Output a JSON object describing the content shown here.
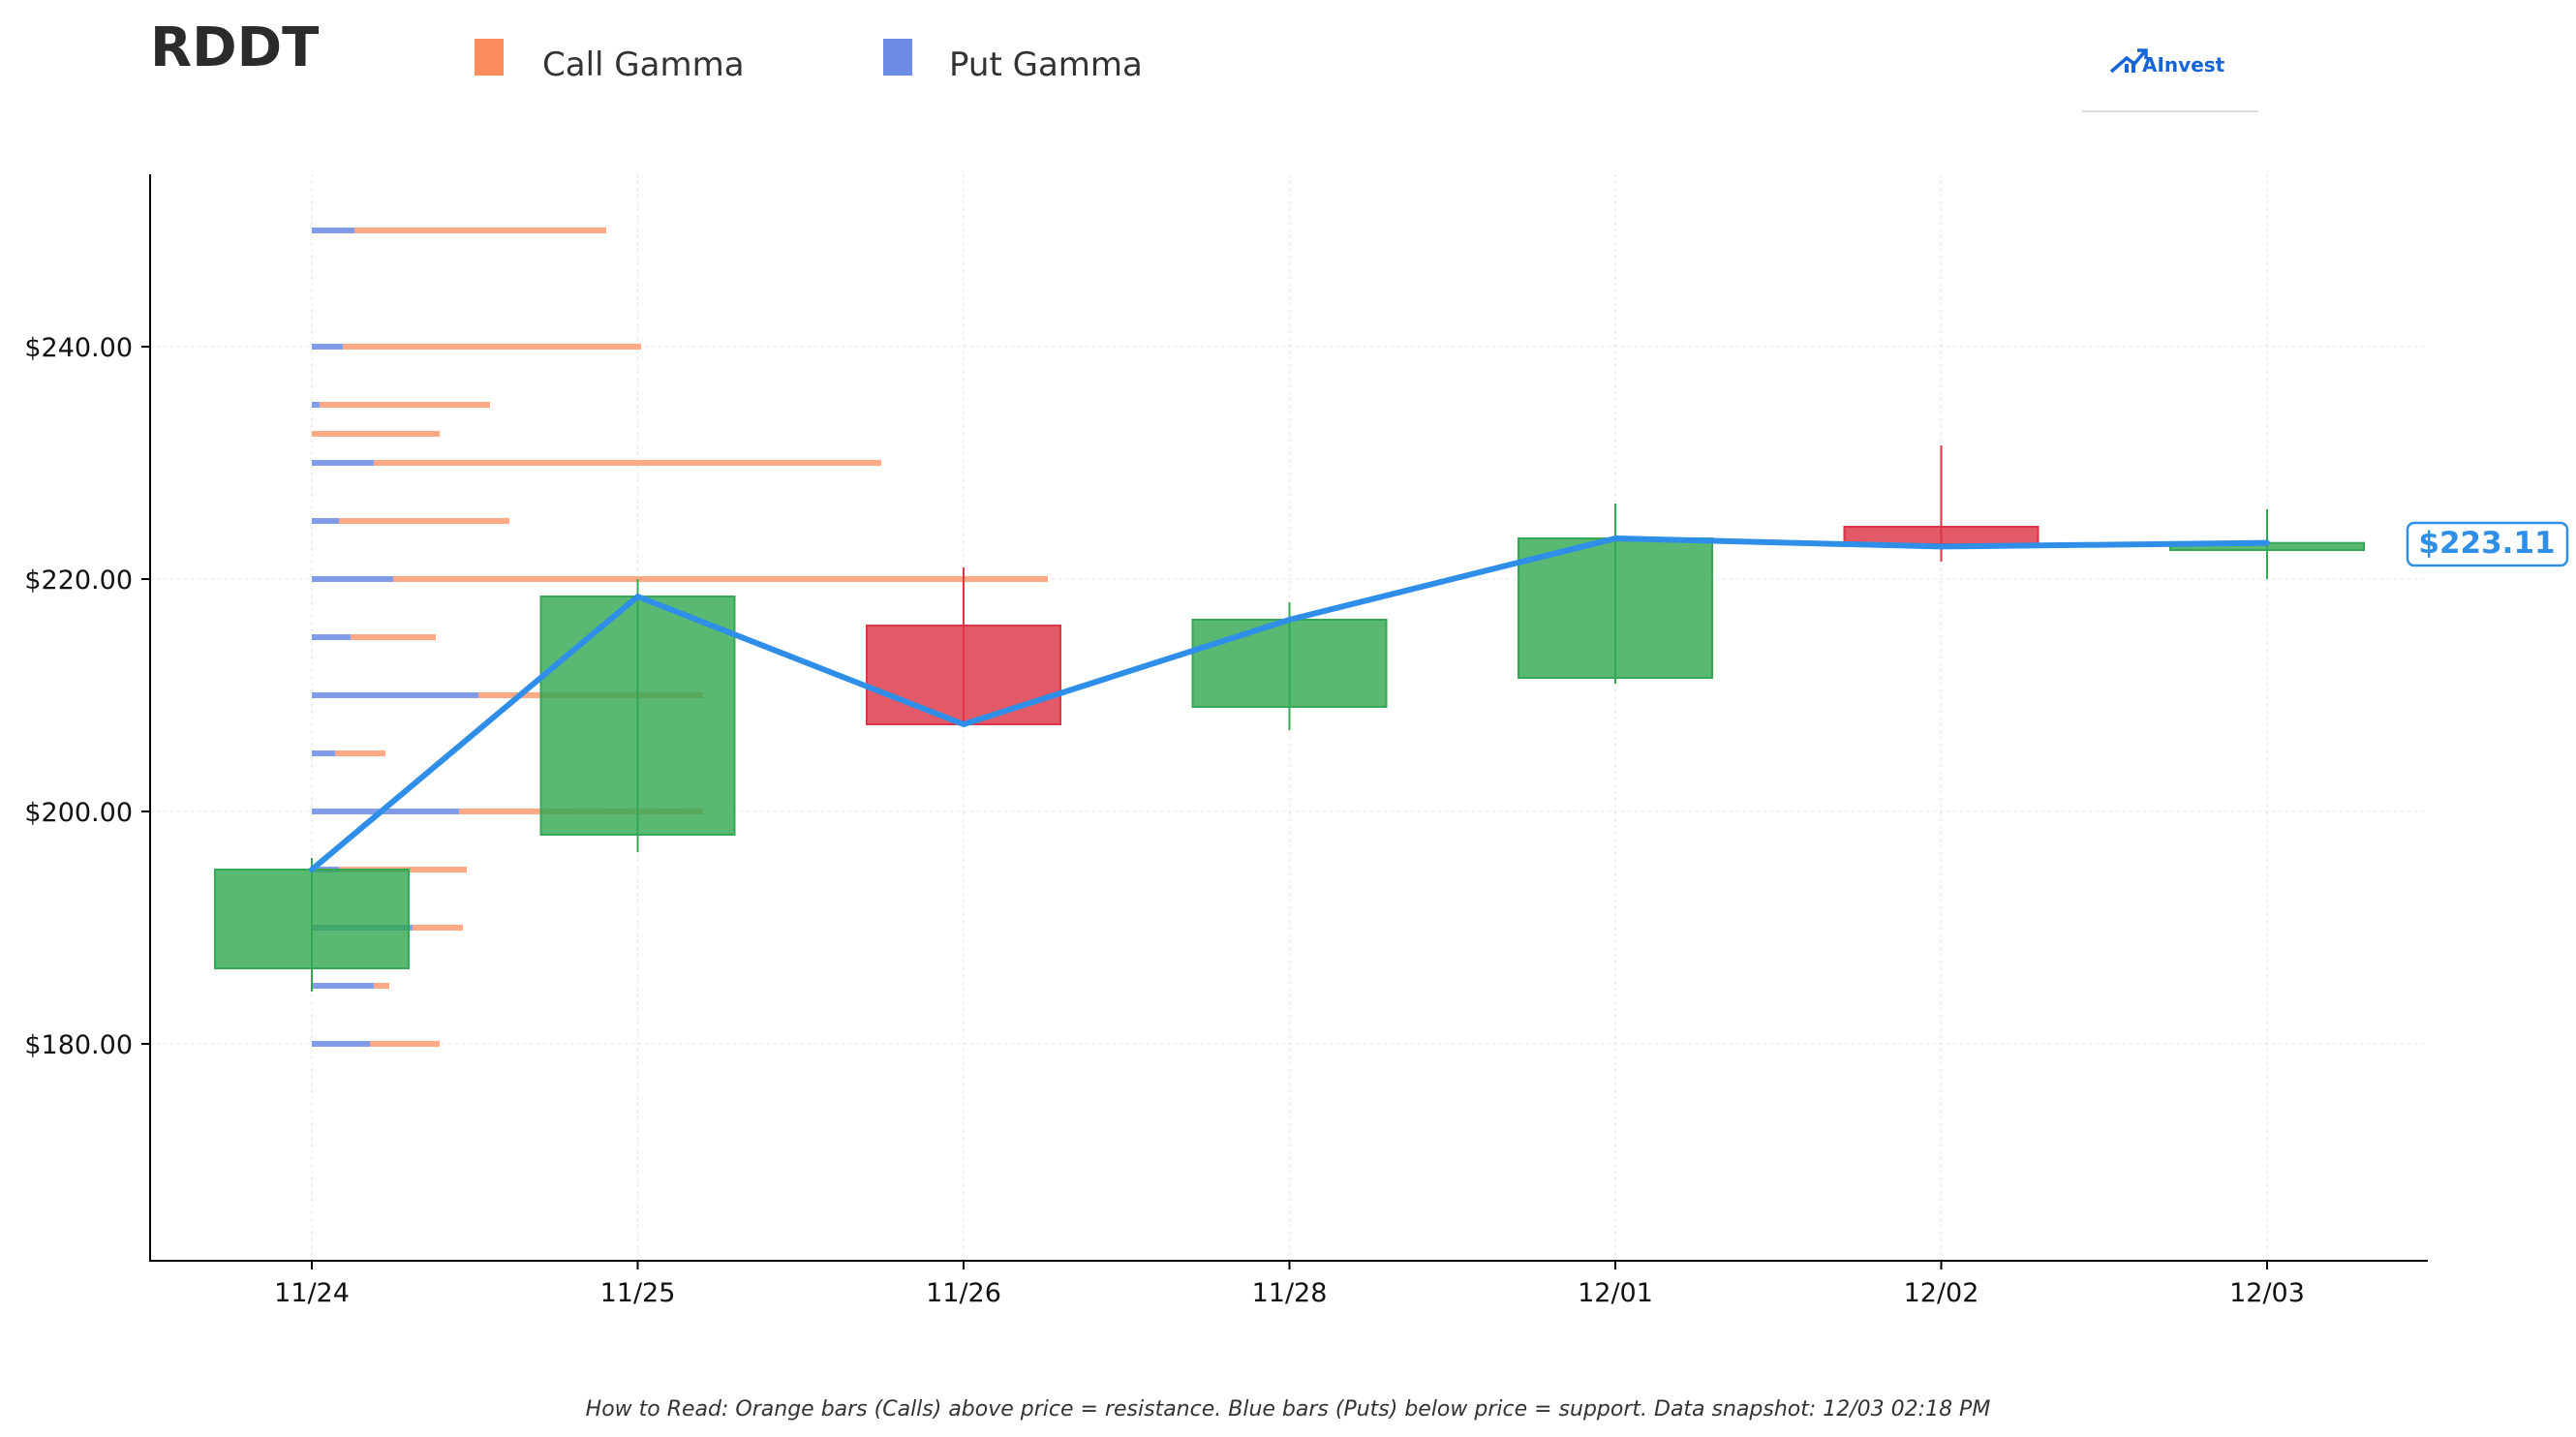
{
  "ticker": "RDDT",
  "legend": {
    "call_label": "Call Gamma",
    "put_label": "Put Gamma",
    "call_color": "#ff8c5c",
    "put_color": "#6b8be6"
  },
  "logo": {
    "text": "AInvest",
    "icon": "chart-arrow-icon"
  },
  "footnote": "How to Read: Orange bars (Calls) above price = resistance. Blue bars (Puts) below price = support. Data snapshot: 12/03 02:18 PM",
  "price_tag": "$223.11",
  "chart_data": {
    "type": "candlestick",
    "title": "RDDT",
    "xlabel": "",
    "ylabel": "",
    "ylim": [
      162,
      255
    ],
    "grid": true,
    "legend_placement": "top-left",
    "categories": [
      "11/24",
      "11/25",
      "11/26",
      "11/28",
      "12/01",
      "12/02",
      "12/03"
    ],
    "y_ticks": [
      180,
      200,
      220,
      240
    ],
    "y_tick_labels": [
      "$180.00",
      "$200.00",
      "$220.00",
      "$240.00"
    ],
    "candles": [
      {
        "date": "11/24",
        "open": 186.5,
        "high": 196.0,
        "low": 184.5,
        "close": 195.0,
        "direction": "up"
      },
      {
        "date": "11/25",
        "open": 198.0,
        "high": 220.0,
        "low": 196.5,
        "close": 218.5,
        "direction": "up"
      },
      {
        "date": "11/26",
        "open": 216.0,
        "high": 221.0,
        "low": 207.5,
        "close": 207.5,
        "direction": "down"
      },
      {
        "date": "11/28",
        "open": 209.0,
        "high": 218.0,
        "low": 207.0,
        "close": 216.5,
        "direction": "up"
      },
      {
        "date": "12/01",
        "open": 211.5,
        "high": 226.5,
        "low": 211.0,
        "close": 223.5,
        "direction": "up"
      },
      {
        "date": "12/02",
        "open": 224.5,
        "high": 231.5,
        "low": 221.5,
        "close": 223.0,
        "direction": "down"
      },
      {
        "date": "12/03",
        "open": 222.5,
        "high": 226.0,
        "low": 220.0,
        "close": 223.11,
        "direction": "up"
      }
    ],
    "close_line": {
      "color": "#2f8fe8",
      "values": [
        195.0,
        218.5,
        207.5,
        216.5,
        223.5,
        222.8,
        223.11
      ]
    },
    "gamma_levels": [
      {
        "strike": 250,
        "put_gamma": 0.11,
        "call_gamma": 0.65
      },
      {
        "strike": 240,
        "put_gamma": 0.08,
        "call_gamma": 0.77
      },
      {
        "strike": 235,
        "put_gamma": 0.02,
        "call_gamma": 0.44
      },
      {
        "strike": 232.5,
        "put_gamma": 0.0,
        "call_gamma": 0.33
      },
      {
        "strike": 230,
        "put_gamma": 0.16,
        "call_gamma": 1.31
      },
      {
        "strike": 225,
        "put_gamma": 0.07,
        "call_gamma": 0.44
      },
      {
        "strike": 220,
        "put_gamma": 0.21,
        "call_gamma": 1.69
      },
      {
        "strike": 215,
        "put_gamma": 0.1,
        "call_gamma": 0.22
      },
      {
        "strike": 210,
        "put_gamma": 0.43,
        "call_gamma": 0.58
      },
      {
        "strike": 205,
        "put_gamma": 0.06,
        "call_gamma": 0.13
      },
      {
        "strike": 200,
        "put_gamma": 0.38,
        "call_gamma": 0.63
      },
      {
        "strike": 195,
        "put_gamma": 0.07,
        "call_gamma": 0.33
      },
      {
        "strike": 190,
        "put_gamma": 0.26,
        "call_gamma": 0.13
      },
      {
        "strike": 185,
        "put_gamma": 0.16,
        "call_gamma": 0.04
      },
      {
        "strike": 180,
        "put_gamma": 0.15,
        "call_gamma": 0.18
      }
    ],
    "colors": {
      "up": "#34a853",
      "down": "#dc3545",
      "call": "#ff8c5c",
      "put": "#6b8be6"
    }
  }
}
